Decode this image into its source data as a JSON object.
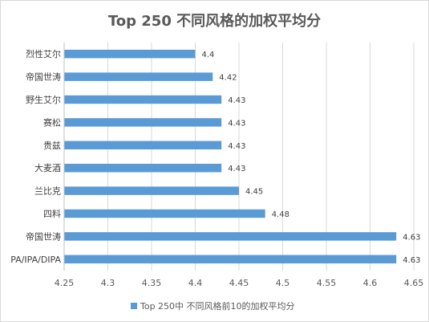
{
  "chart_data": {
    "type": "bar",
    "orientation": "horizontal",
    "title": "Top 250 不同风格的加权平均分",
    "categories": [
      "烈性艾尔",
      "帝国世涛",
      "野生艾尔",
      "赛松",
      "贵兹",
      "大麦酒",
      "兰比克",
      "四料",
      "帝国世涛",
      "PA/IPA/DIPA"
    ],
    "series": [
      {
        "name": "Top 250中 不同风格前10的加权平均分",
        "values": [
          4.4,
          4.42,
          4.43,
          4.43,
          4.43,
          4.43,
          4.45,
          4.48,
          4.63,
          4.63
        ],
        "labels": [
          "4.4",
          "4.42",
          "4.43",
          "4.43",
          "4.43",
          "4.43",
          "4.45",
          "4.48",
          "4.63",
          "4.63"
        ],
        "color": "#5b9bd5"
      }
    ],
    "xlim": [
      4.25,
      4.65
    ],
    "xticks": [
      "4.25",
      "4.3",
      "4.35",
      "4.4",
      "4.45",
      "4.5",
      "4.55",
      "4.6",
      "4.65"
    ],
    "grid": true,
    "legend_position": "bottom"
  }
}
